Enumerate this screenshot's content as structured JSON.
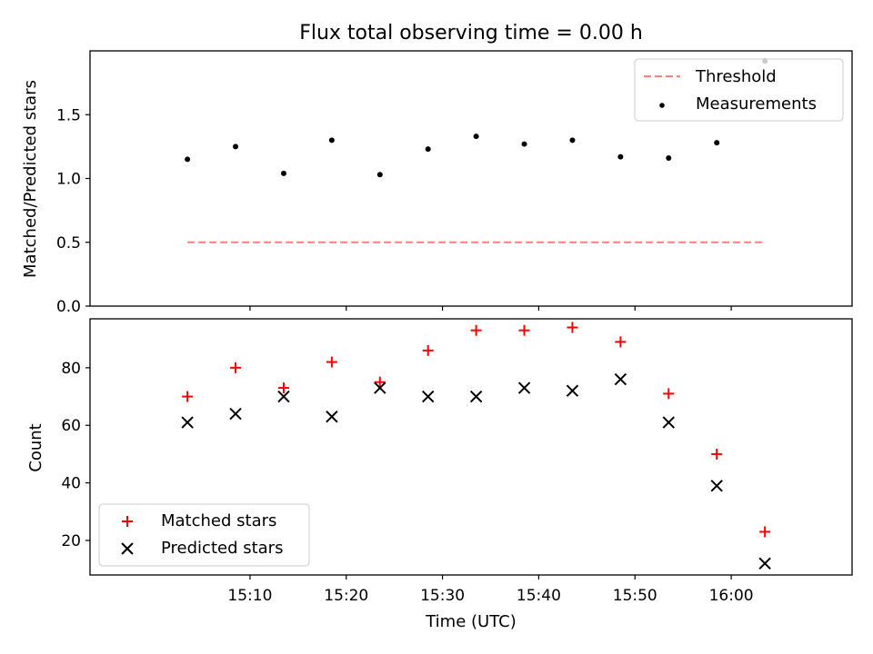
{
  "chart_data": [
    {
      "type": "line",
      "title": "Flux total observing time = 0.00 h",
      "xlabel": "",
      "ylabel": "Matched/Predicted stars",
      "ylim": [
        0.0,
        2.0
      ],
      "yticks": [
        "0.0",
        "0.5",
        "1.0",
        "1.5"
      ],
      "x_times": [
        "15:03:30",
        "15:08:30",
        "15:13:30",
        "15:18:30",
        "15:23:30",
        "15:28:30",
        "15:33:30",
        "15:38:30",
        "15:43:30",
        "15:48:30",
        "15:53:30",
        "15:58:30",
        "16:03:30"
      ],
      "series": [
        {
          "name": "Threshold",
          "style": "dashed-line",
          "color": "#ff7f7f",
          "values": [
            0.5,
            0.5,
            0.5,
            0.5,
            0.5,
            0.5,
            0.5,
            0.5,
            0.5,
            0.5,
            0.5,
            0.5,
            0.5
          ]
        },
        {
          "name": "Measurements",
          "style": "dot",
          "color": "#000000",
          "values": [
            1.15,
            1.25,
            1.04,
            1.3,
            1.03,
            1.23,
            1.33,
            1.27,
            1.3,
            1.17,
            1.16,
            1.28,
            1.92
          ]
        }
      ],
      "legend": "top-right",
      "grid": false
    },
    {
      "type": "scatter",
      "title": "",
      "xlabel": "Time (UTC)",
      "ylabel": "Count",
      "ylim": [
        8,
        97
      ],
      "yticks": [
        "20",
        "40",
        "60",
        "80"
      ],
      "xticks": [
        "15:10",
        "15:20",
        "15:30",
        "15:40",
        "15:50",
        "16:00"
      ],
      "x_times": [
        "15:03:30",
        "15:08:30",
        "15:13:30",
        "15:18:30",
        "15:23:30",
        "15:28:30",
        "15:33:30",
        "15:38:30",
        "15:43:30",
        "15:48:30",
        "15:53:30",
        "15:58:30",
        "16:03:30"
      ],
      "series": [
        {
          "name": "Matched stars",
          "marker": "+",
          "color": "#ff0000",
          "values": [
            70,
            80,
            73,
            82,
            75,
            86,
            93,
            93,
            94,
            89,
            71,
            50,
            23
          ]
        },
        {
          "name": "Predicted stars",
          "marker": "x",
          "color": "#000000",
          "values": [
            61,
            64,
            70,
            63,
            73,
            70,
            70,
            73,
            72,
            76,
            61,
            39,
            12
          ]
        }
      ],
      "legend": "lower-left",
      "grid": false
    }
  ]
}
